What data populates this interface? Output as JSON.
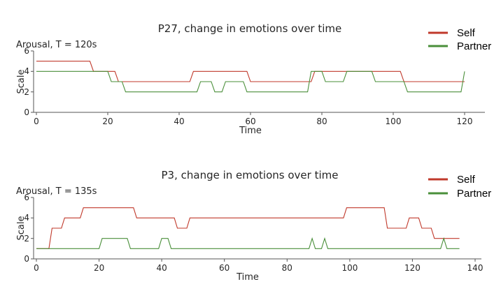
{
  "colors": {
    "self": "#c0392b",
    "partner": "#4a8f3a",
    "axis": "#555555"
  },
  "chart_data": [
    {
      "type": "line",
      "title": "P27, change in emotions over time",
      "subtitle": "Arousal, T = 120s",
      "xlabel": "Time",
      "ylabel": "Scale",
      "xlim": [
        0,
        126
      ],
      "ylim": [
        0,
        6
      ],
      "xticks": [
        0,
        20,
        40,
        60,
        80,
        100,
        120
      ],
      "yticks": [
        0,
        2,
        4,
        6
      ],
      "legend": {
        "position": "top-right",
        "entries": [
          "Self",
          "Partner"
        ]
      },
      "series": [
        {
          "name": "Self",
          "color": "#c0392b",
          "x": [
            0,
            15,
            16,
            20,
            22,
            23,
            43,
            44,
            59,
            60,
            77,
            78,
            102,
            103,
            120
          ],
          "y": [
            5,
            5,
            4,
            4,
            4,
            3,
            3,
            4,
            4,
            3,
            3,
            4,
            4,
            3,
            3
          ]
        },
        {
          "name": "Partner",
          "color": "#4a8f3a",
          "x": [
            0,
            20,
            21,
            24,
            25,
            45,
            46,
            49,
            50,
            52,
            53,
            58,
            59,
            76,
            77,
            80,
            81,
            86,
            87,
            94,
            95,
            103,
            104,
            119,
            120
          ],
          "y": [
            4,
            4,
            3,
            3,
            2,
            2,
            3,
            3,
            2,
            2,
            3,
            3,
            2,
            2,
            4,
            4,
            3,
            3,
            4,
            4,
            3,
            3,
            2,
            2,
            4
          ]
        }
      ]
    },
    {
      "type": "line",
      "title": "P3, change in emotions over time",
      "subtitle": "Arousal, T = 135s",
      "xlabel": "Time",
      "ylabel": "Scale",
      "xlim": [
        0,
        141
      ],
      "ylim": [
        0,
        6
      ],
      "xticks": [
        0,
        20,
        40,
        60,
        80,
        100,
        120,
        140
      ],
      "yticks": [
        0,
        2,
        4,
        6
      ],
      "legend": {
        "position": "top-right",
        "entries": [
          "Self",
          "Partner"
        ]
      },
      "series": [
        {
          "name": "Self",
          "color": "#c0392b",
          "x": [
            0,
            4,
            5,
            8,
            9,
            14,
            15,
            31,
            32,
            44,
            45,
            48,
            49,
            98,
            99,
            111,
            112,
            118,
            119,
            122,
            123,
            126,
            127,
            135
          ],
          "y": [
            1,
            1,
            3,
            3,
            4,
            4,
            5,
            5,
            4,
            4,
            3,
            3,
            4,
            4,
            5,
            5,
            3,
            3,
            4,
            4,
            3,
            3,
            2,
            2
          ]
        },
        {
          "name": "Partner",
          "color": "#4a8f3a",
          "x": [
            0,
            20,
            21,
            29,
            30,
            39,
            40,
            42,
            43,
            87,
            88,
            89,
            91,
            92,
            93,
            129,
            130,
            131,
            135
          ],
          "y": [
            1,
            1,
            2,
            2,
            1,
            1,
            2,
            2,
            1,
            1,
            2,
            1,
            1,
            2,
            1,
            1,
            2,
            1,
            1
          ]
        }
      ]
    }
  ]
}
